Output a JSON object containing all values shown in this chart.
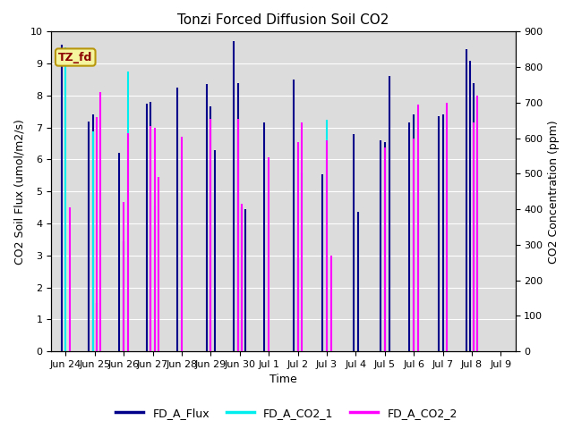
{
  "title": "Tonzi Forced Diffusion Soil CO2",
  "xlabel": "Time",
  "ylabel_left": "CO2 Soil Flux (umol/m2/s)",
  "ylabel_right": "CO2 Concentration (ppm)",
  "annotation": "TZ_fd",
  "ylim_left": [
    0.0,
    10.0
  ],
  "ylim_right": [
    0,
    900
  ],
  "background_color": "#dcdcdc",
  "flux_color": "#00008B",
  "co2_1_color": "#00EEEE",
  "co2_2_color": "#FF00FF",
  "xtick_labels": [
    "Jun 24",
    "Jun 25",
    "Jun 26",
    "Jun 27",
    "Jun 28",
    "Jun 29",
    "Jun 30",
    "Jul 1",
    "Jul 2",
    "Jul 3",
    "Jul 4",
    "Jul 5",
    "Jul 6",
    "Jul 7",
    "Jul 8",
    "Jul 9"
  ],
  "xtick_positions": [
    0,
    1,
    2,
    3,
    4,
    5,
    6,
    7,
    8,
    9,
    10,
    11,
    12,
    13,
    14,
    15
  ],
  "legend_entries": [
    "FD_A_Flux",
    "FD_A_CO2_1",
    "FD_A_CO2_2"
  ],
  "xlim": [
    -0.5,
    15.5
  ],
  "lw": 1.5,
  "co2_ppm_scale": 90,
  "data": [
    {
      "x": 0,
      "off": -0.15,
      "flux": 9.6,
      "co2_1": null,
      "co2_2": null
    },
    {
      "x": 0,
      "off": 0.0,
      "flux": null,
      "co2_1": 855,
      "co2_2": null
    },
    {
      "x": 0,
      "off": 0.15,
      "flux": null,
      "co2_1": null,
      "co2_2": 405
    },
    {
      "x": 1,
      "off": -0.2,
      "flux": 7.2,
      "co2_1": null,
      "co2_2": null
    },
    {
      "x": 1,
      "off": -0.07,
      "flux": 7.4,
      "co2_1": 620,
      "co2_2": null
    },
    {
      "x": 1,
      "off": 0.07,
      "flux": 1.5,
      "co2_1": null,
      "co2_2": 660
    },
    {
      "x": 1,
      "off": 0.2,
      "flux": null,
      "co2_1": null,
      "co2_2": 730
    },
    {
      "x": 2,
      "off": -0.15,
      "flux": 6.2,
      "co2_1": null,
      "co2_2": null
    },
    {
      "x": 2,
      "off": 0.0,
      "flux": 3.45,
      "co2_1": null,
      "co2_2": 420
    },
    {
      "x": 2,
      "off": 0.15,
      "flux": null,
      "co2_1": 788,
      "co2_2": 615
    },
    {
      "x": 3,
      "off": -0.2,
      "flux": 7.75,
      "co2_1": null,
      "co2_2": null
    },
    {
      "x": 3,
      "off": -0.07,
      "flux": 7.8,
      "co2_1": null,
      "co2_2": 635
    },
    {
      "x": 3,
      "off": 0.07,
      "flux": null,
      "co2_1": 410,
      "co2_2": 630
    },
    {
      "x": 3,
      "off": 0.2,
      "flux": null,
      "co2_1": null,
      "co2_2": 490
    },
    {
      "x": 4,
      "off": -0.15,
      "flux": 8.25,
      "co2_1": null,
      "co2_2": null
    },
    {
      "x": 4,
      "off": 0.0,
      "flux": null,
      "co2_1": 549,
      "co2_2": 605
    },
    {
      "x": 4,
      "off": 0.15,
      "flux": null,
      "co2_1": null,
      "co2_2": null
    },
    {
      "x": 5,
      "off": -0.15,
      "flux": 8.35,
      "co2_1": null,
      "co2_2": null
    },
    {
      "x": 5,
      "off": 0.0,
      "flux": 7.65,
      "co2_1": null,
      "co2_2": 655
    },
    {
      "x": 5,
      "off": 0.15,
      "flux": 6.3,
      "co2_1": null,
      "co2_2": null
    },
    {
      "x": 6,
      "off": -0.2,
      "flux": 9.7,
      "co2_1": null,
      "co2_2": null
    },
    {
      "x": 6,
      "off": -0.07,
      "flux": 8.4,
      "co2_1": null,
      "co2_2": 655
    },
    {
      "x": 6,
      "off": 0.07,
      "flux": 4.5,
      "co2_1": null,
      "co2_2": 415
    },
    {
      "x": 6,
      "off": 0.2,
      "flux": 4.45,
      "co2_1": null,
      "co2_2": null
    },
    {
      "x": 7,
      "off": -0.15,
      "flux": 7.15,
      "co2_1": null,
      "co2_2": null
    },
    {
      "x": 7,
      "off": 0.0,
      "flux": null,
      "co2_1": null,
      "co2_2": 545
    },
    {
      "x": 7,
      "off": 0.15,
      "flux": null,
      "co2_1": null,
      "co2_2": null
    },
    {
      "x": 8,
      "off": -0.15,
      "flux": 8.5,
      "co2_1": null,
      "co2_2": null
    },
    {
      "x": 8,
      "off": 0.0,
      "flux": 2.9,
      "co2_1": null,
      "co2_2": 590
    },
    {
      "x": 8,
      "off": 0.15,
      "flux": null,
      "co2_1": 504,
      "co2_2": 645
    },
    {
      "x": 9,
      "off": -0.15,
      "flux": 5.55,
      "co2_1": null,
      "co2_2": null
    },
    {
      "x": 9,
      "off": 0.0,
      "flux": null,
      "co2_1": 653,
      "co2_2": 595
    },
    {
      "x": 9,
      "off": 0.15,
      "flux": null,
      "co2_1": null,
      "co2_2": 270
    },
    {
      "x": 10,
      "off": -0.07,
      "flux": 6.8,
      "co2_1": null,
      "co2_2": null
    },
    {
      "x": 10,
      "off": 0.07,
      "flux": 4.35,
      "co2_1": null,
      "co2_2": null
    },
    {
      "x": 11,
      "off": -0.15,
      "flux": 6.6,
      "co2_1": null,
      "co2_2": null
    },
    {
      "x": 11,
      "off": 0.0,
      "flux": 6.55,
      "co2_1": null,
      "co2_2": 575
    },
    {
      "x": 11,
      "off": 0.15,
      "flux": 8.6,
      "co2_1": null,
      "co2_2": null
    },
    {
      "x": 12,
      "off": -0.15,
      "flux": 7.15,
      "co2_1": null,
      "co2_2": null
    },
    {
      "x": 12,
      "off": 0.0,
      "flux": 7.4,
      "co2_1": null,
      "co2_2": 600
    },
    {
      "x": 12,
      "off": 0.15,
      "flux": null,
      "co2_1": 545,
      "co2_2": 695
    },
    {
      "x": 13,
      "off": -0.15,
      "flux": 7.35,
      "co2_1": null,
      "co2_2": null
    },
    {
      "x": 13,
      "off": 0.0,
      "flux": 7.4,
      "co2_1": null,
      "co2_2": null
    },
    {
      "x": 13,
      "off": 0.15,
      "flux": null,
      "co2_1": 540,
      "co2_2": 700
    },
    {
      "x": 14,
      "off": -0.2,
      "flux": 9.45,
      "co2_1": null,
      "co2_2": null
    },
    {
      "x": 14,
      "off": -0.07,
      "flux": 9.1,
      "co2_1": null,
      "co2_2": null
    },
    {
      "x": 14,
      "off": 0.07,
      "flux": 8.4,
      "co2_1": null,
      "co2_2": 645
    },
    {
      "x": 14,
      "off": 0.2,
      "flux": null,
      "co2_1": 540,
      "co2_2": 720
    }
  ]
}
